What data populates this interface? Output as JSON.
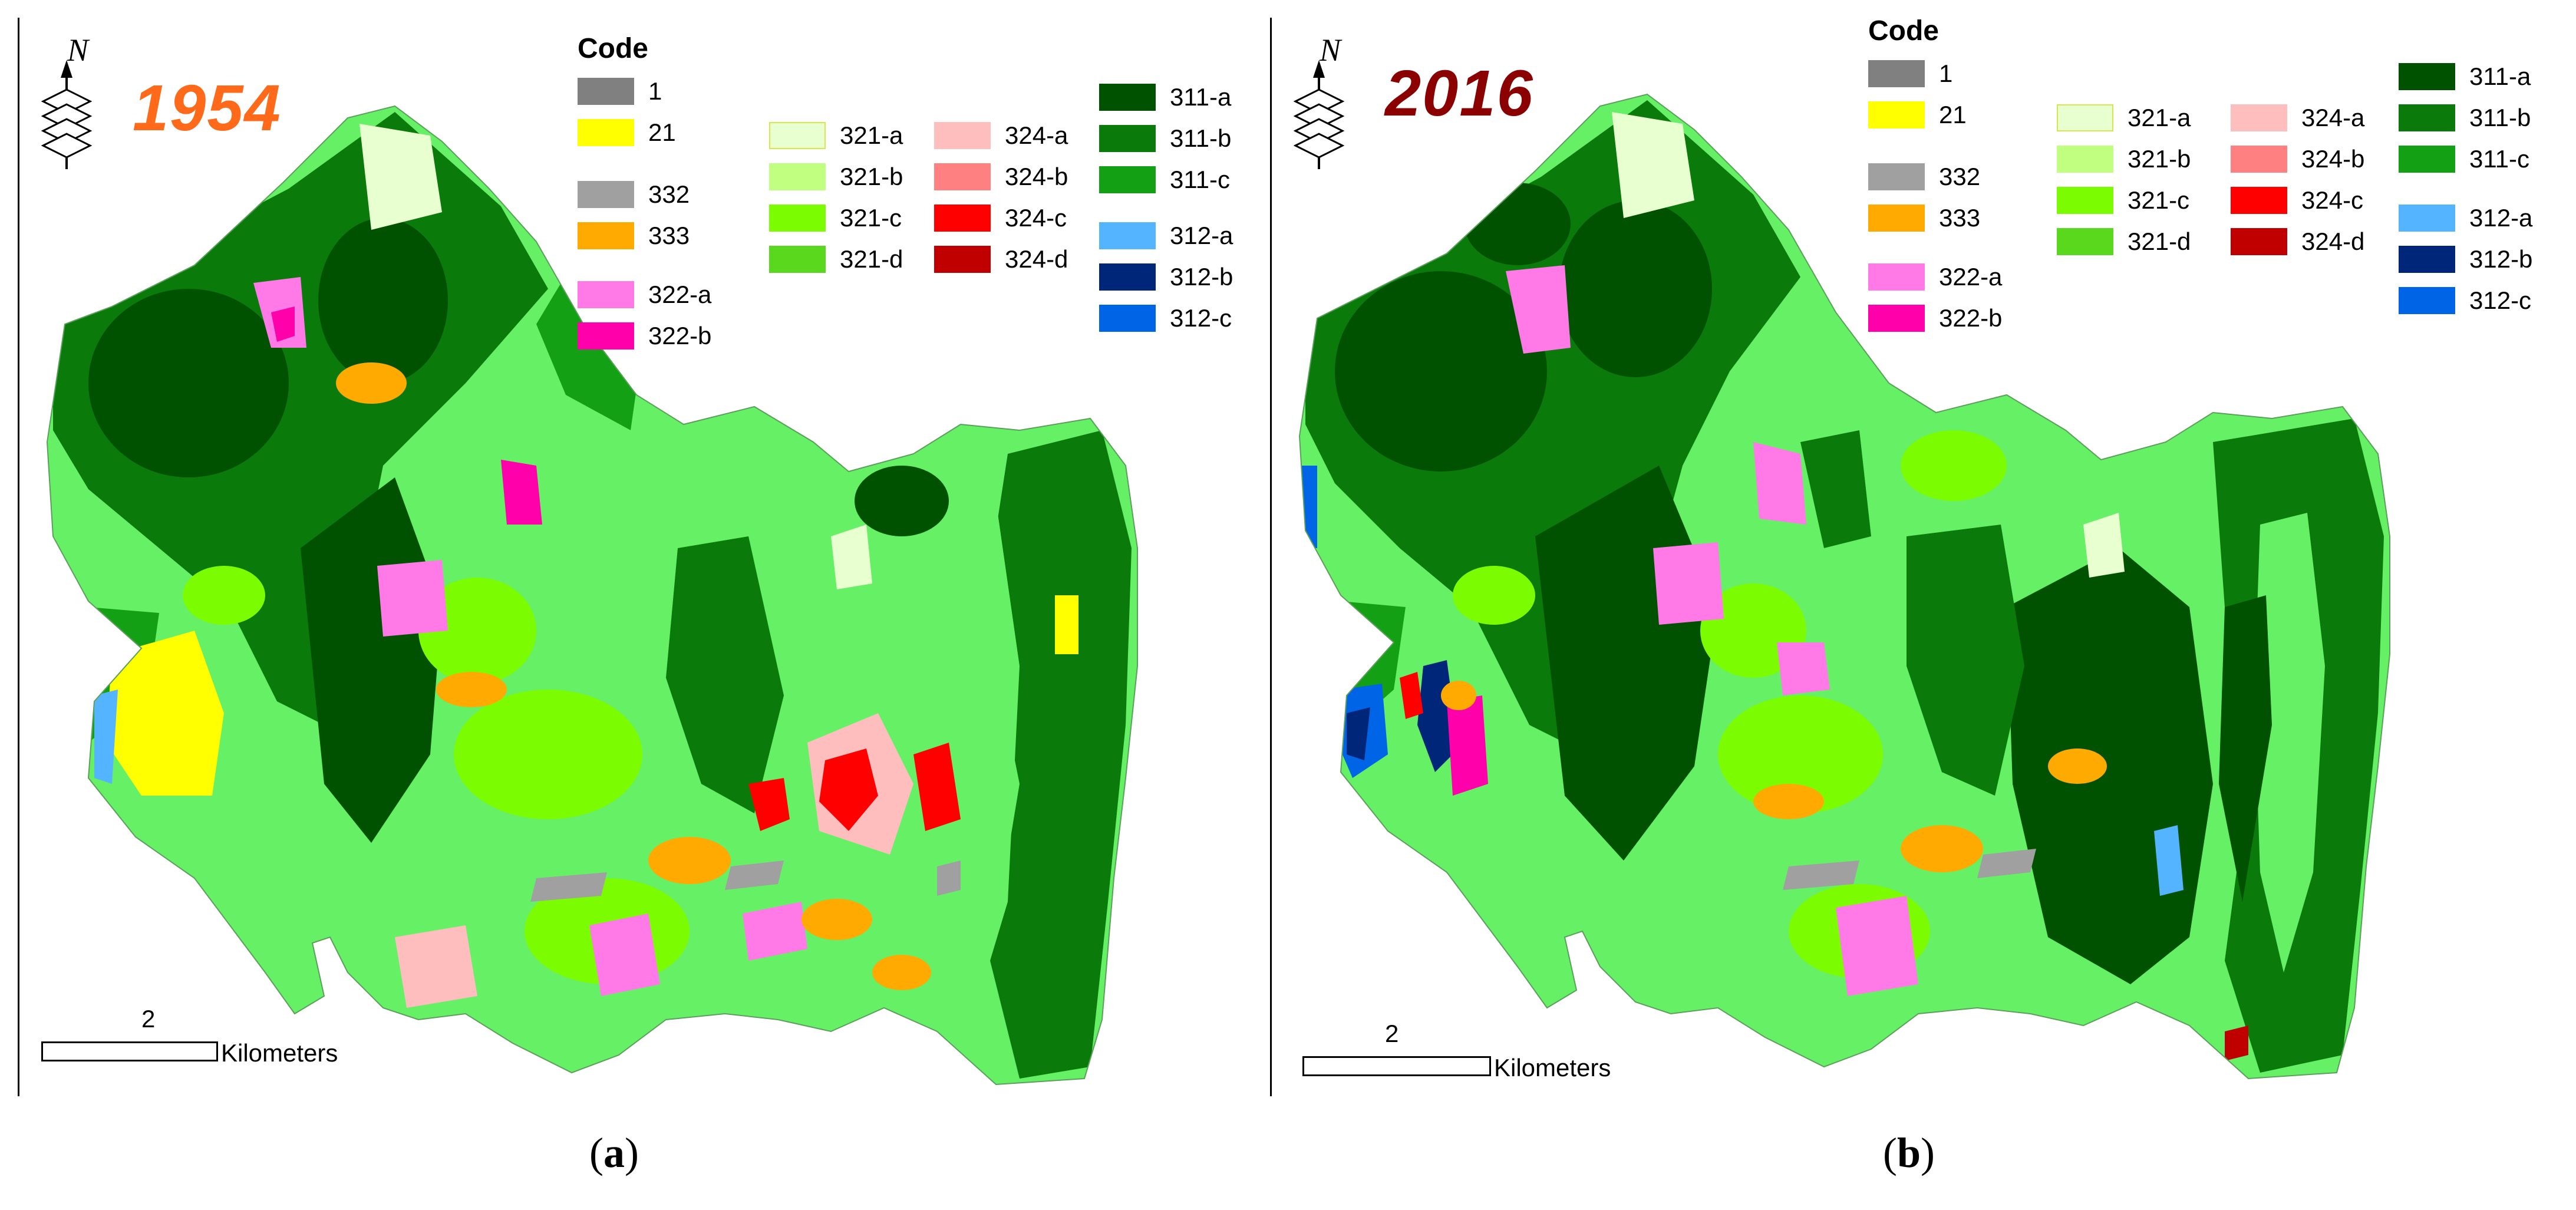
{
  "panels": [
    {
      "id": "a",
      "year": "1954",
      "year_color": "#ff6a1a",
      "north_label": "N",
      "legend_title": "Code",
      "scale_number": "2",
      "scale_unit": "Kilometers",
      "caption_open": "(",
      "caption_letter": "a",
      "caption_close": ")"
    },
    {
      "id": "b",
      "year": "2016",
      "year_color": "#8b0000",
      "north_label": "N",
      "legend_title": "Code",
      "scale_number": "2",
      "scale_unit": "Kilometers",
      "caption_open": "(",
      "caption_letter": "b",
      "caption_close": ")"
    }
  ],
  "legend": [
    {
      "code": "1",
      "color": "#808080"
    },
    {
      "code": "21",
      "color": "#ffff00"
    },
    {
      "code": "332",
      "color": "#a0a0a0"
    },
    {
      "code": "333",
      "color": "#ffaa00"
    },
    {
      "code": "322-a",
      "color": "#ff7ae6"
    },
    {
      "code": "322-b",
      "color": "#ff00aa"
    },
    {
      "code": "321-a",
      "color": "#e8ffd0"
    },
    {
      "code": "321-b",
      "color": "#c0ff80"
    },
    {
      "code": "321-c",
      "color": "#7cfc00"
    },
    {
      "code": "321-d",
      "color": "#5ad81e"
    },
    {
      "code": "324-a",
      "color": "#ffbebe"
    },
    {
      "code": "324-b",
      "color": "#ff8080"
    },
    {
      "code": "324-c",
      "color": "#ff0000"
    },
    {
      "code": "324-d",
      "color": "#c00000"
    },
    {
      "code": "311-a",
      "color": "#005200"
    },
    {
      "code": "311-b",
      "color": "#0a7a0a"
    },
    {
      "code": "311-c",
      "color": "#14a014"
    },
    {
      "code": "312-a",
      "color": "#55b4ff"
    },
    {
      "code": "312-b",
      "color": "#00267a"
    },
    {
      "code": "312-c",
      "color": "#0064e6"
    }
  ]
}
